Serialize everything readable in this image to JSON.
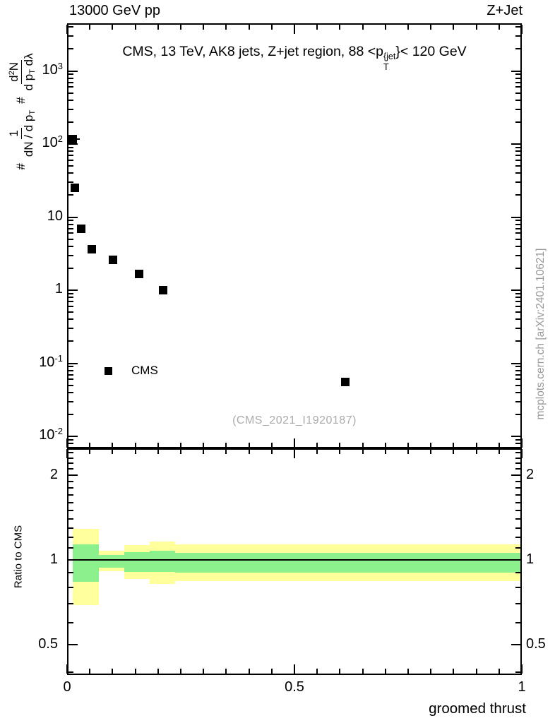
{
  "header": {
    "left": "13000 GeV pp",
    "right": "Z+Jet"
  },
  "panel_title": {
    "pre": "CMS, 13 TeV, AK8 jets, Z+jet region, 88 <p",
    "sup": "{jet",
    "sub": "T",
    "post": "}< 120 GeV"
  },
  "ylabel": {
    "hash1": "#",
    "frac1_num": "1",
    "frac1_den_pre": "dN / d p",
    "frac1_den_sub": "T",
    "hash2": "#",
    "frac2_num_pre": "d",
    "frac2_num_sup": "2",
    "frac2_num_post": "N",
    "frac2_den_pre": "d p",
    "frac2_den_sub": "T",
    "frac2_den_post": " dλ"
  },
  "legend": {
    "label": "CMS"
  },
  "watermark": "(CMS_2021_I1920187)",
  "side_note": "mcplots.cern.ch [arXiv:2401.10621]",
  "ratio_ylabel": "Ratio to CMS",
  "colors": {
    "band_yellow": "#ffff9b",
    "band_green": "#8cf08c",
    "marker": "#000000",
    "watermark_gray": "#ababab",
    "sidenote_gray": "#999999"
  },
  "chart_data": {
    "type": "scatter",
    "title": "CMS, 13 TeV, AK8 jets, Z+jet region, 88 < pT{jet} < 120 GeV",
    "xlabel": "groomed thrust",
    "ylabel": "# 1/(dN/dpT) # d2N/(dpT dlambda)",
    "ratio_label": "Ratio to CMS",
    "xscale": "linear",
    "yscale": "log",
    "ratio_scale": "log",
    "xlim": [
      0,
      1
    ],
    "ylim_main": [
      0.007,
      4500
    ],
    "ylim_ratio": [
      0.39,
      2.49
    ],
    "grid": false,
    "legend_position": "inside-left",
    "x_major_ticks": [
      0,
      0.5,
      1
    ],
    "x_tick_labels": [
      "0",
      "0.5",
      "1"
    ],
    "x_minor_step": 0.05,
    "y_decades": [
      1000,
      100,
      10,
      1,
      0.1,
      0.01
    ],
    "y_tick_labels": [
      {
        "base": "10",
        "exp": "3"
      },
      {
        "base": "10",
        "exp": "2"
      },
      {
        "base": "10",
        "exp": ""
      },
      {
        "base": "1",
        "exp": ""
      },
      {
        "base": "10",
        "exp": "-1"
      },
      {
        "base": "10",
        "exp": "-2"
      }
    ],
    "ratio_major_ticks": [
      2,
      1,
      0.5
    ],
    "ratio_tick_labels": [
      "2",
      "1",
      "0.5"
    ],
    "ratio_minor_ticks": [
      0.4,
      0.6,
      0.7,
      0.8,
      0.9,
      1.1,
      1.2,
      1.3,
      1.4,
      1.5,
      1.6,
      1.7,
      1.8,
      1.9,
      2.1,
      2.2,
      2.3,
      2.4
    ],
    "ratio_reference": 1,
    "series": [
      {
        "name": "CMS",
        "marker": "filled-black-square",
        "x": [
          0.0125,
          0.017,
          0.031,
          0.055,
          0.101,
          0.158,
          0.211,
          0.612
        ],
        "y": [
          117,
          25,
          7.0,
          3.6,
          2.6,
          1.65,
          1.0,
          0.055
        ],
        "xerr": [
          [
            0.0,
            0.028
          ],
          null,
          null,
          null,
          null,
          null,
          null,
          null
        ]
      }
    ],
    "ratio_bands": [
      {
        "x0": 0.0125,
        "x1": 0.07,
        "yellow": [
          0.691,
          1.289
        ],
        "green": [
          0.836,
          1.135
        ]
      },
      {
        "x0": 0.07,
        "x1": 0.126,
        "yellow": [
          0.912,
          1.078
        ],
        "green": [
          0.938,
          1.041
        ]
      },
      {
        "x0": 0.126,
        "x1": 0.181,
        "yellow": [
          0.856,
          1.129
        ],
        "green": [
          0.907,
          1.065
        ]
      },
      {
        "x0": 0.181,
        "x1": 0.238,
        "yellow": [
          0.822,
          1.162
        ],
        "green": [
          0.907,
          1.078
        ]
      },
      {
        "x0": 0.238,
        "x1": 1.0,
        "yellow": [
          0.841,
          1.135
        ],
        "green": [
          0.901,
          1.059
        ]
      }
    ]
  }
}
